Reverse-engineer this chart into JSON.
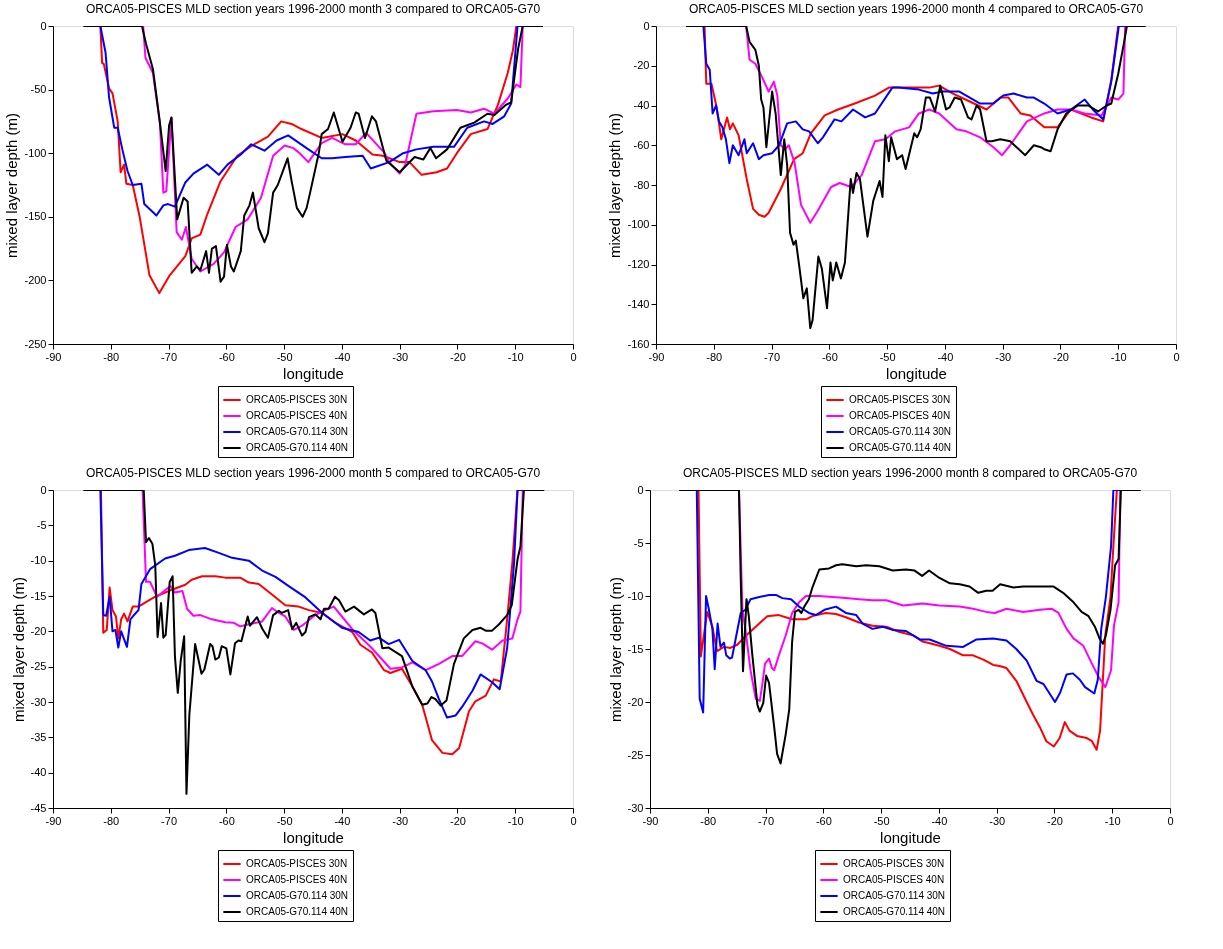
{
  "chart_data": [
    {
      "type": "line",
      "title": "ORCA05-PISCES MLD section years 1996-2000 month 3 compared to ORCA05-G70",
      "xlabel": "longitude",
      "ylabel": "mixed layer depth (m)",
      "xlim": [
        -90,
        0
      ],
      "xticks": [
        -90,
        -80,
        -70,
        -60,
        -50,
        -40,
        -30,
        -20,
        -10,
        0
      ],
      "ylim": [
        -250,
        0
      ],
      "yticks": [
        -250,
        -200,
        -150,
        -100,
        -50,
        0
      ],
      "legend": "bottom",
      "series": [
        {
          "name": "ORCA05-PISCES 30N",
          "color": "#ff0000",
          "x": [
            -84.7,
            -81.8,
            -81.5,
            -81.2,
            -80.3,
            -79.7,
            -78.8,
            -78.3,
            -77.7,
            -77.3,
            -76.2,
            -75.0,
            -73.3,
            -71.6,
            -69.8,
            -67.1,
            -66.0,
            -64.5,
            -63.3,
            -61.0,
            -58.1,
            -55.2,
            -52.8,
            -50.5,
            -48.7,
            -47.0,
            -43.5,
            -39.9,
            -37.6,
            -34.7,
            -32.9,
            -30.0,
            -28.3,
            -26.2,
            -23.6,
            -21.8,
            -20.1,
            -17.7,
            -14.8,
            -13.0,
            -11.3,
            -10.4,
            -9.8,
            -5.2
          ],
          "values": [
            0,
            0,
            -29,
            -30,
            -49,
            -53,
            -75,
            -115,
            -109,
            -124,
            -125,
            -150,
            -196,
            -210,
            -196,
            -181,
            -167,
            -164,
            -148,
            -122,
            -102,
            -93,
            -87,
            -75,
            -77,
            -81,
            -88,
            -85,
            -90,
            -101,
            -102,
            -107,
            -107,
            -117,
            -115,
            -112,
            -100,
            -85,
            -81,
            -62,
            -37,
            -19,
            0,
            0
          ]
        },
        {
          "name": "ORCA05-PISCES 40N",
          "color": "#ff00ff",
          "x": [
            -84.7,
            -74.4,
            -74.0,
            -72.7,
            -71.5,
            -70.9,
            -70.4,
            -69.5,
            -68.6,
            -67.7,
            -67.0,
            -66.0,
            -64.5,
            -62.2,
            -60.4,
            -58.4,
            -56.3,
            -54.0,
            -51.9,
            -49.9,
            -48.4,
            -47.3,
            -45.8,
            -43.5,
            -41.7,
            -39.4,
            -37.6,
            -35.8,
            -32.6,
            -31.8,
            -30.0,
            -29.1,
            -27.1,
            -24.2,
            -20.1,
            -17.7,
            -15.4,
            -13.6,
            -11.3,
            -9.8,
            -9.1,
            -8.7,
            -5.2
          ],
          "values": [
            0,
            0,
            -25,
            -37,
            -76,
            -131,
            -130,
            -72,
            -162,
            -168,
            -158,
            -183,
            -193,
            -187,
            -178,
            -158,
            -152,
            -135,
            -102,
            -94,
            -96,
            -100,
            -107,
            -92,
            -88,
            -93,
            -93,
            -84,
            -100,
            -107,
            -116,
            -110,
            -69,
            -67,
            -66,
            -68,
            -65,
            -69,
            -57,
            -46,
            -48,
            0,
            0
          ]
        },
        {
          "name": "ORCA05-G70.114 30N",
          "color": "#0000ff",
          "x": [
            -84.7,
            -81.8,
            -80.9,
            -80.3,
            -79.4,
            -78.8,
            -78.0,
            -77.1,
            -76.2,
            -74.7,
            -74.2,
            -72.1,
            -70.9,
            -70.1,
            -68.9,
            -67.1,
            -65.7,
            -63.3,
            -61.3,
            -59.8,
            -57.5,
            -55.7,
            -53.4,
            -51.3,
            -49.3,
            -45.8,
            -43.5,
            -41.7,
            -39.4,
            -36.4,
            -35.0,
            -31.8,
            -29.4,
            -27.1,
            -24.2,
            -20.6,
            -18.3,
            -15.4,
            -13.9,
            -11.9,
            -10.7,
            -9.6,
            -5.2
          ],
          "values": [
            0,
            0,
            -21,
            -56,
            -80,
            -80,
            -97,
            -114,
            -125,
            -124,
            -140,
            -149,
            -141,
            -140,
            -142,
            -123,
            -116,
            -109,
            -117,
            -109,
            -101,
            -93,
            -98,
            -90,
            -86,
            -97,
            -104,
            -104,
            -103,
            -102,
            -112,
            -107,
            -100,
            -97,
            -95,
            -95,
            -80,
            -75,
            -77,
            -71,
            -61,
            0,
            0
          ]
        },
        {
          "name": "ORCA05-G70.114 40N",
          "color": "#000000",
          "x": [
            -84.7,
            -74.6,
            -73.9,
            -72.7,
            -71.5,
            -70.5,
            -69.9,
            -69.5,
            -68.5,
            -67.4,
            -66.7,
            -66.0,
            -65.1,
            -64.5,
            -63.5,
            -63.0,
            -62.5,
            -61.8,
            -61.0,
            -60.4,
            -59.9,
            -59.2,
            -58.7,
            -57.5,
            -56.9,
            -56.0,
            -55.4,
            -54.4,
            -53.4,
            -52.8,
            -51.9,
            -51.1,
            -49.4,
            -48.7,
            -47.8,
            -46.8,
            -46.1,
            -45.5,
            -44.0,
            -43.5,
            -42.4,
            -41.4,
            -39.9,
            -38.5,
            -37.6,
            -37.1,
            -36.0,
            -34.8,
            -34.1,
            -32.3,
            -30.0,
            -27.4,
            -25.9,
            -24.7,
            -23.7,
            -21.8,
            -19.5,
            -17.1,
            -14.8,
            -13.6,
            -11.6,
            -10.7,
            -9.5,
            -8.7,
            -5.2
          ],
          "values": [
            0,
            0,
            -14,
            -34,
            -76,
            -114,
            -78,
            -72,
            -152,
            -135,
            -138,
            -194,
            -189,
            -192,
            -177,
            -194,
            -175,
            -173,
            -201,
            -197,
            -172,
            -189,
            -193,
            -177,
            -149,
            -141,
            -131,
            -159,
            -170,
            -163,
            -131,
            -125,
            -104,
            -122,
            -143,
            -150,
            -143,
            -131,
            -100,
            -85,
            -81,
            -68,
            -91,
            -80,
            -68,
            -69,
            -88,
            -71,
            -75,
            -106,
            -115,
            -103,
            -105,
            -96,
            -104,
            -97,
            -80,
            -76,
            -69,
            -70,
            -62,
            -60,
            -18,
            0,
            0
          ]
        }
      ]
    },
    {
      "type": "line",
      "title": "ORCA05-PISCES MLD section years 1996-2000 month 4 compared to ORCA05-G70",
      "xlabel": "longitude",
      "ylabel": "mixed layer depth (m)",
      "xlim": [
        -90,
        0
      ],
      "xticks": [
        -90,
        -80,
        -70,
        -60,
        -50,
        -40,
        -30,
        -20,
        -10,
        0
      ],
      "ylim": [
        -160,
        0
      ],
      "yticks": [
        -160,
        -140,
        -120,
        -100,
        -80,
        -60,
        -40,
        -20,
        0
      ],
      "legend": "bottom",
      "series": [
        {
          "name": "ORCA05-PISCES 30N",
          "color": "#ff0000",
          "x": [
            -84.8,
            -81.6,
            -81.3,
            -80.4,
            -79.5,
            -78.7,
            -77.7,
            -77.2,
            -76.7,
            -75.7,
            -74.3,
            -73.2,
            -72.2,
            -71.2,
            -70.5,
            -68.4,
            -66.1,
            -64.6,
            -63.2,
            -60.8,
            -58.5,
            -55.6,
            -52.1,
            -49.7,
            -47.4,
            -44.5,
            -42.7,
            -41.0,
            -38.6,
            -35.7,
            -32.8,
            -30.4,
            -29.0,
            -26.9,
            -25.2,
            -22.8,
            -20.5,
            -18.2,
            -16.4,
            -14.7,
            -12.6,
            -11.2,
            -10.0,
            -5.3
          ],
          "values": [
            0,
            0,
            -29,
            -29,
            -41,
            -57,
            -46,
            -52,
            -49,
            -55,
            -77,
            -92,
            -95,
            -96,
            -94,
            -82,
            -67,
            -64,
            -54,
            -45,
            -42,
            -39,
            -35,
            -31,
            -31,
            -31,
            -31,
            -30,
            -34,
            -38,
            -42,
            -36,
            -36,
            -44,
            -45,
            -51,
            -51,
            -42,
            -44,
            -46,
            -48,
            -27,
            0,
            0
          ]
        },
        {
          "name": "ORCA05-PISCES 40N",
          "color": "#ff00ff",
          "x": [
            -84.8,
            -74.4,
            -73.8,
            -72.8,
            -71.6,
            -70.5,
            -69.6,
            -69.0,
            -68.4,
            -67.7,
            -67.0,
            -66.0,
            -64.9,
            -63.3,
            -62.0,
            -59.7,
            -58.2,
            -56.2,
            -54.4,
            -52.1,
            -50.3,
            -48.6,
            -46.2,
            -44.5,
            -42.7,
            -41.0,
            -38.0,
            -36.3,
            -33.9,
            -31.6,
            -30.1,
            -28.7,
            -25.8,
            -22.8,
            -20.5,
            -18.2,
            -15.8,
            -12.9,
            -11.2,
            -10.0,
            -9.1,
            -8.8,
            -5.3
          ],
          "values": [
            0,
            0,
            -17,
            -19,
            -26,
            -33,
            -28,
            -35,
            -60,
            -62,
            -60,
            -69,
            -90,
            -99,
            -93,
            -81,
            -79,
            -81,
            -75,
            -58,
            -57,
            -53,
            -51,
            -44,
            -42,
            -44,
            -52,
            -53,
            -56,
            -61,
            -65,
            -60,
            -48,
            -44,
            -42,
            -42,
            -44,
            -45,
            -36,
            -37,
            -34,
            0,
            0
          ]
        },
        {
          "name": "ORCA05-G70.114 30N",
          "color": "#0000ff",
          "x": [
            -84.8,
            -81.8,
            -81.3,
            -80.7,
            -80.2,
            -79.6,
            -79.1,
            -78.5,
            -77.9,
            -77.3,
            -76.7,
            -75.7,
            -74.7,
            -74.3,
            -73.2,
            -72.2,
            -71.4,
            -69.9,
            -68.7,
            -67.3,
            -65.8,
            -64.6,
            -63.5,
            -62.0,
            -61.1,
            -59.1,
            -57.9,
            -55.9,
            -53.8,
            -52.1,
            -49.1,
            -48.0,
            -44.5,
            -42.1,
            -40.4,
            -37.5,
            -35.7,
            -33.9,
            -31.6,
            -29.9,
            -28.1,
            -25.8,
            -24.6,
            -22.8,
            -20.5,
            -18.2,
            -15.8,
            -14.4,
            -12.6,
            -11.2,
            -9.9,
            -5.3
          ],
          "values": [
            0,
            0,
            -19,
            -22,
            -44,
            -40,
            -48,
            -51,
            -57,
            -69,
            -60,
            -65,
            -57,
            -64,
            -59,
            -67,
            -65,
            -64,
            -60,
            -49,
            -48,
            -52,
            -53,
            -59,
            -56,
            -47,
            -48,
            -42,
            -46,
            -44,
            -31,
            -31,
            -32,
            -34,
            -33,
            -33,
            -36,
            -39,
            -39,
            -35,
            -34,
            -36,
            -36,
            -39,
            -44,
            -42,
            -37,
            -42,
            -47,
            -28,
            0,
            0
          ]
        },
        {
          "name": "ORCA05-G70.114 40N",
          "color": "#000000",
          "x": [
            -84.8,
            -74.4,
            -73.8,
            -72.8,
            -72.2,
            -71.8,
            -71.4,
            -70.9,
            -69.9,
            -69.3,
            -68.4,
            -67.8,
            -67.3,
            -66.8,
            -66.2,
            -65.8,
            -65.2,
            -64.5,
            -63.9,
            -63.3,
            -62.9,
            -61.9,
            -61.3,
            -60.4,
            -59.8,
            -59.4,
            -58.8,
            -58.0,
            -57.3,
            -56.3,
            -55.9,
            -55.3,
            -54.7,
            -53.4,
            -52.4,
            -51.3,
            -50.8,
            -50.3,
            -49.7,
            -49.3,
            -48.3,
            -47.4,
            -46.8,
            -45.3,
            -44.8,
            -44.2,
            -43.3,
            -42.6,
            -41.7,
            -40.8,
            -39.8,
            -39.2,
            -38.3,
            -37.2,
            -36.0,
            -35.4,
            -34.5,
            -33.9,
            -32.8,
            -31.9,
            -30.4,
            -28.7,
            -26.1,
            -24.6,
            -23.4,
            -22.8,
            -21.7,
            -20.5,
            -19.0,
            -17.0,
            -15.2,
            -13.5,
            -12.0,
            -11.2,
            -10.0,
            -9.1,
            -8.5,
            -5.3
          ],
          "values": [
            0,
            0,
            -8,
            -12,
            -20,
            -37,
            -41,
            -61,
            -33,
            -44,
            -75,
            -57,
            -70,
            -104,
            -110,
            -108,
            -121,
            -137,
            -132,
            -152,
            -148,
            -116,
            -122,
            -142,
            -119,
            -128,
            -119,
            -127,
            -119,
            -77,
            -84,
            -74,
            -77,
            -106,
            -88,
            -78,
            -86,
            -55,
            -68,
            -56,
            -67,
            -65,
            -72,
            -54,
            -56,
            -52,
            -36,
            -36,
            -43,
            -30,
            -42,
            -41,
            -36,
            -37,
            -46,
            -47,
            -40,
            -42,
            -58,
            -58,
            -57,
            -58,
            -65,
            -60,
            -61,
            -62,
            -63,
            -52,
            -44,
            -40,
            -40,
            -43,
            -40,
            -39,
            -24,
            -10,
            0,
            0
          ]
        }
      ]
    },
    {
      "type": "line",
      "title": "ORCA05-PISCES MLD section years 1996-2000 month 5 compared to ORCA05-G70",
      "xlabel": "longitude",
      "ylabel": "mixed layer depth (m)",
      "xlim": [
        -90,
        0
      ],
      "xticks": [
        -90,
        -80,
        -70,
        -60,
        -50,
        -40,
        -30,
        -20,
        -10,
        0
      ],
      "ylim": [
        -45,
        0
      ],
      "yticks": [
        -45,
        -40,
        -35,
        -30,
        -25,
        -20,
        -15,
        -10,
        -5,
        0
      ],
      "legend": "bottom",
      "series": [
        {
          "name": "ORCA05-PISCES 30N",
          "color": "#ff0000",
          "x": [
            -84.7,
            -81.7,
            -81.3,
            -80.7,
            -80.2,
            -79.7,
            -79.1,
            -78.7,
            -78.2,
            -77.7,
            -77.1,
            -76.2,
            -75.2,
            -74.0,
            -72.3,
            -70.0,
            -67.1,
            -66.0,
            -64.2,
            -61.9,
            -60.2,
            -57.6,
            -56.1,
            -54.4,
            -52.1,
            -49.8,
            -47.5,
            -45.7,
            -43.4,
            -41.1,
            -38.2,
            -36.8,
            -34.8,
            -32.7,
            -31.6,
            -29.6,
            -27.8,
            -26.1,
            -24.4,
            -22.6,
            -20.9,
            -19.7,
            -18.0,
            -16.9,
            -15.1,
            -13.7,
            -12.5,
            -11.4,
            -10.5,
            -9.6,
            -5.0
          ],
          "values": [
            0,
            0,
            -20.2,
            -19.8,
            -13.8,
            -17,
            -17.9,
            -21,
            -18.3,
            -17.5,
            -18.6,
            -16.5,
            -16.5,
            -15.9,
            -15.1,
            -14.3,
            -13.4,
            -12.7,
            -12.2,
            -12.2,
            -12.4,
            -12.4,
            -13.1,
            -13.3,
            -14.8,
            -16.3,
            -16.5,
            -17,
            -17.4,
            -18.8,
            -20.1,
            -21.9,
            -23,
            -25.5,
            -25.9,
            -25.3,
            -27.8,
            -30.4,
            -35.4,
            -37.2,
            -37.4,
            -36.5,
            -31.3,
            -29.9,
            -29.1,
            -26.8,
            -27.1,
            -18.3,
            -10.3,
            0,
            0
          ]
        },
        {
          "name": "ORCA05-PISCES 40N",
          "color": "#ff00ff",
          "x": [
            -84.7,
            -74.5,
            -73.9,
            -73.2,
            -72.0,
            -69.7,
            -68.9,
            -67.6,
            -66.8,
            -65.7,
            -64.5,
            -62.5,
            -60.2,
            -58.7,
            -57.6,
            -56.1,
            -53.8,
            -52.1,
            -50.9,
            -49.8,
            -48.3,
            -46.9,
            -44.6,
            -42.9,
            -41.4,
            -40.0,
            -38.2,
            -34.8,
            -31.6,
            -29.6,
            -27.8,
            -25.5,
            -23.2,
            -20.9,
            -19.2,
            -16.9,
            -15.7,
            -14.0,
            -12.2,
            -10.5,
            -9.6,
            -9.1,
            -8.7,
            -5.0
          ],
          "values": [
            0,
            0,
            -13,
            -13,
            -15.1,
            -13.6,
            -14.5,
            -14.3,
            -16.8,
            -17.8,
            -17.7,
            -18.3,
            -18.7,
            -18.8,
            -19.3,
            -19,
            -18.6,
            -16.7,
            -17.4,
            -17.9,
            -19.8,
            -19.2,
            -17.7,
            -17,
            -16.5,
            -17.9,
            -19.7,
            -22.4,
            -25.3,
            -25.1,
            -24.4,
            -25.5,
            -24.6,
            -23.5,
            -23.5,
            -21.4,
            -21.7,
            -22.6,
            -21.3,
            -21,
            -18.3,
            -17.2,
            0,
            0
          ]
        },
        {
          "name": "ORCA05-G70.114 30N",
          "color": "#0000ff",
          "x": [
            -84.7,
            -81.8,
            -81.3,
            -80.8,
            -80.2,
            -79.7,
            -79.2,
            -78.7,
            -78.2,
            -77.2,
            -76.6,
            -76.1,
            -75.2,
            -74.7,
            -73.2,
            -70.6,
            -68.9,
            -66.5,
            -63.7,
            -61.3,
            -59.0,
            -56.1,
            -53.8,
            -51.5,
            -49.2,
            -46.3,
            -43.4,
            -40.0,
            -37.1,
            -35.1,
            -33.6,
            -31.9,
            -30.1,
            -27.8,
            -25.5,
            -24.4,
            -23.2,
            -21.8,
            -20.3,
            -19.2,
            -17.4,
            -16.0,
            -14.0,
            -12.7,
            -11.4,
            -10.2,
            -9.6,
            -5.0
          ],
          "values": [
            0,
            0,
            -17.7,
            -17.8,
            -15.1,
            -20,
            -19.8,
            -22.3,
            -20,
            -22.2,
            -18.3,
            -17.8,
            -17,
            -13.3,
            -11.2,
            -9.7,
            -9.3,
            -8.5,
            -8.2,
            -8.9,
            -9.6,
            -10,
            -11.4,
            -12.3,
            -13.6,
            -15.2,
            -17.4,
            -19.5,
            -20.1,
            -21.3,
            -20.9,
            -21.8,
            -21.2,
            -24.2,
            -25.5,
            -27.1,
            -29.6,
            -32.2,
            -31.9,
            -30.7,
            -28.4,
            -26.1,
            -27.2,
            -28.2,
            -22.4,
            -10.3,
            0,
            0
          ]
        },
        {
          "name": "ORCA05-G70.114 40N",
          "color": "#000000",
          "x": [
            -84.7,
            -74.3,
            -73.9,
            -73.4,
            -72.8,
            -72.3,
            -71.9,
            -71.3,
            -70.9,
            -70.5,
            -69.8,
            -69.3,
            -68.9,
            -68.4,
            -67.9,
            -67.3,
            -66.9,
            -66.4,
            -65.4,
            -64.3,
            -63.8,
            -62.8,
            -62.4,
            -61.9,
            -61.3,
            -60.8,
            -60.0,
            -59.3,
            -58.5,
            -57.9,
            -57.4,
            -56.3,
            -55.9,
            -54.7,
            -53.8,
            -52.8,
            -51.9,
            -50.9,
            -50.4,
            -49.3,
            -48.6,
            -47.9,
            -46.9,
            -46.3,
            -45.7,
            -44.6,
            -43.7,
            -43.1,
            -42.3,
            -41.2,
            -40.5,
            -39.4,
            -37.9,
            -36.2,
            -34.8,
            -34.2,
            -33.0,
            -31.9,
            -29.6,
            -27.8,
            -26.1,
            -25.2,
            -24.5,
            -23.8,
            -22.9,
            -21.9,
            -20.6,
            -18.9,
            -17.4,
            -16.0,
            -15.1,
            -14.0,
            -12.8,
            -11.4,
            -10.6,
            -9.6,
            -9.1,
            -8.5,
            -5.0
          ],
          "values": [
            0,
            0,
            -7.4,
            -6.8,
            -7.6,
            -10.7,
            -20.8,
            -16,
            -20.9,
            -20.5,
            -13,
            -12.2,
            -23.5,
            -28.7,
            -24.2,
            -20.7,
            -43,
            -31.8,
            -21.8,
            -26,
            -25.4,
            -21.8,
            -22.1,
            -24,
            -23.7,
            -22.1,
            -22.4,
            -26.1,
            -21.7,
            -21.3,
            -21.4,
            -17.9,
            -19.2,
            -18,
            -19.6,
            -20.9,
            -17.7,
            -17.1,
            -17.4,
            -17,
            -19.7,
            -18.8,
            -20.6,
            -20.1,
            -18,
            -17.6,
            -18.3,
            -16.8,
            -16.8,
            -15.1,
            -15.6,
            -17.2,
            -16.5,
            -17.6,
            -16.9,
            -17.4,
            -22.4,
            -22.3,
            -23.5,
            -27.8,
            -30.4,
            -30.2,
            -29.3,
            -29.6,
            -30.5,
            -29.8,
            -24.6,
            -21,
            -19.8,
            -19.5,
            -19.9,
            -19.9,
            -19,
            -17.7,
            -16.3,
            -9.8,
            -8,
            0,
            0
          ]
        }
      ]
    },
    {
      "type": "line",
      "title": "ORCA05-PISCES MLD section years 1996-2000 month 8 compared to ORCA05-G70",
      "xlabel": "longitude",
      "ylabel": "mixed layer depth (m)",
      "xlim": [
        -90,
        0
      ],
      "xticks": [
        -90,
        -80,
        -70,
        -60,
        -50,
        -40,
        -30,
        -20,
        -10,
        0
      ],
      "ylim": [
        -30,
        0
      ],
      "yticks": [
        -30,
        -25,
        -20,
        -15,
        -10,
        -5,
        0
      ],
      "legend": "bottom",
      "series": [
        {
          "name": "ORCA05-PISCES 30N",
          "color": "#ff0000",
          "x": [
            -84.9,
            -81.6,
            -81.2,
            -80.1,
            -79.2,
            -78.4,
            -77.2,
            -76.1,
            -74.9,
            -73.5,
            -71.7,
            -69.7,
            -67.7,
            -65.4,
            -63.0,
            -61.9,
            -59.6,
            -57.8,
            -56.1,
            -53.8,
            -51.5,
            -49.1,
            -46.8,
            -44.5,
            -42.8,
            -39.9,
            -38.1,
            -35.8,
            -34.1,
            -32.3,
            -30.6,
            -29.5,
            -28.3,
            -26.6,
            -24.8,
            -23.7,
            -22.5,
            -21.4,
            -20.1,
            -19.1,
            -18.2,
            -17.4,
            -16.1,
            -14.4,
            -13.5,
            -12.7,
            -12.1,
            -11.2,
            -10.3,
            -9.8,
            -9.2,
            -5.1
          ],
          "values": [
            0,
            0,
            -15.7,
            -11.5,
            -12.9,
            -15.2,
            -14.8,
            -14.9,
            -14.6,
            -13.8,
            -12.9,
            -11.9,
            -11.8,
            -12.2,
            -12.2,
            -11.9,
            -11.6,
            -11.7,
            -12,
            -12.5,
            -12.8,
            -12.9,
            -13.4,
            -13.7,
            -14.3,
            -14.7,
            -15,
            -15.6,
            -15.6,
            -16,
            -16.5,
            -16.6,
            -16.8,
            -18,
            -20,
            -21.2,
            -22.4,
            -23.7,
            -24.2,
            -23.4,
            -21.9,
            -22.7,
            -23.2,
            -23.4,
            -23.7,
            -24.5,
            -22.7,
            -13.7,
            -10.1,
            -5.3,
            0,
            0
          ]
        },
        {
          "name": "ORCA05-PISCES 40N",
          "color": "#ff00ff",
          "x": [
            -84.9,
            -74.6,
            -74.0,
            -73.5,
            -72.6,
            -71.7,
            -71.0,
            -70.6,
            -70.1,
            -69.4,
            -68.9,
            -68.5,
            -67.7,
            -66.5,
            -65.4,
            -64.2,
            -63.0,
            -60.7,
            -58.4,
            -56.1,
            -53.8,
            -51.5,
            -49.1,
            -46.2,
            -42.8,
            -39.9,
            -36.4,
            -34.1,
            -31.8,
            -30.3,
            -28.3,
            -25.4,
            -22.5,
            -20.5,
            -19.3,
            -17.9,
            -16.7,
            -15.0,
            -13.5,
            -12.4,
            -11.2,
            -10.2,
            -9.7,
            -8.9,
            -8.6,
            -5.1
          ],
          "values": [
            0,
            0,
            -11.3,
            -13.1,
            -17,
            -19.7,
            -19.9,
            -18.5,
            -16.4,
            -15.9,
            -16.8,
            -17,
            -15.6,
            -13.7,
            -11.6,
            -10.6,
            -10,
            -10,
            -10.1,
            -10.2,
            -10.3,
            -10.4,
            -10.4,
            -10.9,
            -10.7,
            -10.9,
            -11,
            -11.2,
            -11.5,
            -11.6,
            -11.2,
            -11.5,
            -11.3,
            -11.2,
            -11.6,
            -13.1,
            -14,
            -14.7,
            -16.4,
            -17.6,
            -18.6,
            -17,
            -12.8,
            -10.6,
            0,
            0
          ]
        },
        {
          "name": "ORCA05-G70.114 30N",
          "color": "#0000ff",
          "x": [
            -84.9,
            -81.9,
            -81.4,
            -80.8,
            -80.3,
            -79.8,
            -79.2,
            -78.8,
            -78.3,
            -77.8,
            -77.2,
            -76.8,
            -76.2,
            -75.8,
            -74.3,
            -73.5,
            -72.6,
            -71.1,
            -69.4,
            -68.2,
            -67.1,
            -65.6,
            -64.2,
            -62.5,
            -61.3,
            -59.8,
            -57.8,
            -56.1,
            -54.3,
            -53.2,
            -51.5,
            -49.7,
            -48.0,
            -45.7,
            -43.3,
            -41.6,
            -38.7,
            -35.8,
            -33.5,
            -30.6,
            -28.3,
            -26.6,
            -24.8,
            -23.1,
            -21.9,
            -19.9,
            -19.0,
            -17.9,
            -16.8,
            -15.6,
            -14.7,
            -13.1,
            -12.5,
            -11.9,
            -11.1,
            -10.2,
            -9.8,
            -5.1
          ],
          "values": [
            0,
            0,
            -19.7,
            -21,
            -10,
            -11.3,
            -13.1,
            -16.9,
            -12.6,
            -14.8,
            -14.4,
            -15.6,
            -15.9,
            -15.8,
            -11.6,
            -11.3,
            -10.3,
            -10.1,
            -9.9,
            -9.9,
            -10.2,
            -10.3,
            -11,
            -11.6,
            -11.8,
            -11.3,
            -11,
            -11.6,
            -11.8,
            -12.6,
            -13.1,
            -12.9,
            -13.2,
            -13.3,
            -14.1,
            -14.1,
            -14.7,
            -14.8,
            -14.1,
            -14,
            -14.2,
            -15,
            -16.1,
            -18,
            -18.3,
            -20,
            -19.1,
            -17.4,
            -17.3,
            -17.9,
            -18.6,
            -19.2,
            -17.9,
            -13.1,
            -10.1,
            -5.3,
            0,
            0
          ]
        },
        {
          "name": "ORCA05-G70.114 40N",
          "color": "#000000",
          "x": [
            -84.9,
            -74.6,
            -74.3,
            -73.9,
            -73.3,
            -72.9,
            -72.3,
            -71.4,
            -71.0,
            -70.4,
            -69.9,
            -69.4,
            -68.5,
            -68.0,
            -67.4,
            -66.5,
            -65.9,
            -65.4,
            -64.9,
            -64.3,
            -63.8,
            -63.3,
            -62.5,
            -61.9,
            -60.7,
            -59.0,
            -57.8,
            -56.7,
            -54.3,
            -52.6,
            -50.3,
            -48.0,
            -45.7,
            -44.2,
            -42.9,
            -41.7,
            -39.9,
            -38.1,
            -36.4,
            -34.7,
            -33.2,
            -31.8,
            -30.7,
            -29.4,
            -27.1,
            -25.4,
            -22.5,
            -20.2,
            -18.5,
            -16.7,
            -15.3,
            -14.1,
            -13.0,
            -12.2,
            -11.6,
            -11.1,
            -10.3,
            -9.5,
            -8.9,
            -8.5,
            -5.1
          ],
          "values": [
            0,
            0,
            -8.3,
            -17.1,
            -10.3,
            -11.9,
            -15.5,
            -20.3,
            -20.9,
            -20.1,
            -17.5,
            -18.2,
            -22.4,
            -24.9,
            -25.8,
            -23,
            -20.7,
            -14.3,
            -11.5,
            -11.3,
            -11.6,
            -11,
            -10.3,
            -9.2,
            -7.5,
            -7.4,
            -7.1,
            -7,
            -7.2,
            -7.1,
            -7.2,
            -7.6,
            -7.5,
            -7.6,
            -8.1,
            -7.6,
            -8.3,
            -8.8,
            -8.9,
            -9.1,
            -9.7,
            -9.5,
            -9.5,
            -8.9,
            -9.2,
            -9.1,
            -9.1,
            -9.1,
            -9.7,
            -10.6,
            -11.5,
            -11.9,
            -12.9,
            -14,
            -14.5,
            -13.7,
            -11.3,
            -7.1,
            -6.5,
            0,
            0
          ]
        }
      ]
    }
  ]
}
